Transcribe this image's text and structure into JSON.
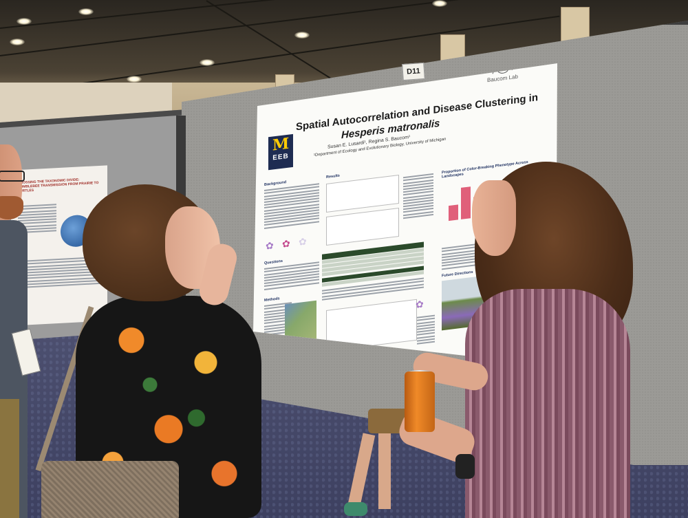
{
  "scene": {
    "booth_number": "D11"
  },
  "poster": {
    "title_line1": "Spatial Autocorrelation and Disease Clustering in",
    "title_line2": "Hesperis matronalis",
    "authors": "Susan E. Lusardi¹, Regina S. Baucom¹",
    "affiliation": "¹Department of Ecology and Evolutionary Biology, University of Michigan",
    "logo_letter": "M",
    "logo_text": "EEB",
    "lab_logo": "Baucom Lab",
    "section_background": "Background",
    "section_results": "Results",
    "section_questions": "Questions",
    "section_methods": "Methods",
    "section_future": "Future Directions",
    "chart_title": "Proportion of Color-Breaking Phenotype Across Landscapes"
  },
  "left_poster": {
    "title": "CROSSING THE TAXONOMIC DIVIDE: BUMBLEBEE TRANSMISSION FROM PRAIRIE TO TURTLES"
  },
  "colors": {
    "michigan_blue": "#1e2c52",
    "michigan_maize": "#ffcb05",
    "bar_pink": "#e0607a",
    "table_header_green": "#2b4a2b"
  }
}
